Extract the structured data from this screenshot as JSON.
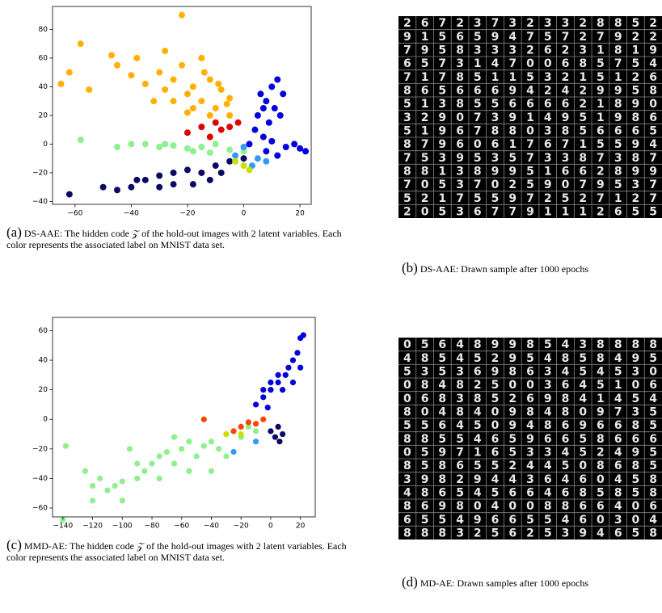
{
  "chart_data": [
    {
      "type": "scatter",
      "xlim": [
        -68,
        24
      ],
      "ylim": [
        -42,
        96
      ],
      "xticks": [
        {
          "value": -60,
          "label": "−60"
        },
        {
          "value": -40,
          "label": "−40"
        },
        {
          "value": -20,
          "label": "−20"
        },
        0,
        20
      ],
      "yticks": [
        {
          "value": -40,
          "label": "−40"
        },
        {
          "value": -20,
          "label": "−20"
        },
        0,
        20,
        40,
        60,
        80
      ],
      "series": [
        {
          "color": "#ffb000",
          "x": [
            -62,
            -65,
            -58,
            -55,
            -47,
            -45,
            -40,
            -38,
            -35,
            -30,
            -28,
            -25,
            -22,
            -20,
            -18,
            -15,
            -12,
            -10,
            -8,
            -5,
            -15,
            -22,
            -12,
            -25,
            -32,
            -18,
            -5,
            -28,
            -14,
            -9,
            -20,
            -6
          ],
          "values": [
            50,
            42,
            70,
            38,
            62,
            55,
            48,
            60,
            42,
            50,
            65,
            45,
            55,
            35,
            40,
            30,
            45,
            25,
            38,
            20,
            60,
            90,
            20,
            30,
            30,
            25,
            32,
            38,
            50,
            42,
            22,
            28
          ]
        },
        {
          "color": "#0000dd",
          "x": [
            5,
            8,
            10,
            12,
            6,
            9,
            11,
            14,
            7,
            4,
            10,
            15,
            20,
            18,
            8,
            12,
            2,
            22,
            13,
            7
          ],
          "values": [
            20,
            30,
            40,
            45,
            35,
            15,
            25,
            35,
            5,
            10,
            2,
            -2,
            -3,
            0,
            -5,
            -8,
            0,
            -5,
            20,
            25
          ]
        },
        {
          "color": "#0a0a64",
          "x": [
            -62,
            -50,
            -45,
            -40,
            -35,
            -30,
            -25,
            -20,
            -15,
            -10,
            -5,
            0,
            -18,
            -25,
            -8,
            -12,
            -30,
            -38
          ],
          "values": [
            -35,
            -30,
            -32,
            -30,
            -25,
            -22,
            -20,
            -18,
            -20,
            -15,
            -12,
            -10,
            -28,
            -28,
            -20,
            -25,
            -30,
            -25
          ]
        },
        {
          "color": "#8ef08e",
          "x": [
            -45,
            -40,
            -35,
            -30,
            -25,
            -20,
            -15,
            -10,
            -5,
            0,
            -28,
            -18,
            -12,
            -58
          ],
          "values": [
            -2,
            0,
            0,
            -2,
            -1,
            -3,
            -2,
            0,
            -4,
            -5,
            0,
            -5,
            -6,
            3
          ]
        },
        {
          "color": "#e00000",
          "x": [
            -20,
            -15,
            -10,
            -5,
            -2,
            -12,
            -8
          ],
          "values": [
            8,
            12,
            15,
            12,
            15,
            5,
            10
          ]
        },
        {
          "color": "#3399ff",
          "x": [
            0,
            5,
            3,
            8,
            -3
          ],
          "values": [
            -2,
            -10,
            -15,
            -12,
            -8
          ]
        },
        {
          "color": "#c8e000",
          "x": [
            0,
            -3,
            2
          ],
          "values": [
            -15,
            -12,
            -18
          ]
        }
      ]
    },
    {
      "type": "scatter",
      "xlim": [
        -147,
        30
      ],
      "ylim": [
        -66,
        69
      ],
      "xticks": [
        {
          "value": -140,
          "label": "−140"
        },
        {
          "value": -120,
          "label": "−120"
        },
        {
          "value": -100,
          "label": "−100"
        },
        {
          "value": -80,
          "label": "−80"
        },
        {
          "value": -60,
          "label": "−60"
        },
        {
          "value": -40,
          "label": "−40"
        },
        {
          "value": -20,
          "label": "−20"
        },
        0,
        20
      ],
      "yticks": [
        {
          "value": -60,
          "label": "−60"
        },
        {
          "value": -40,
          "label": "−40"
        },
        {
          "value": -20,
          "label": "−20"
        },
        0,
        20,
        40,
        60
      ],
      "series": [
        {
          "color": "#0000dd",
          "x": [
            -10,
            -5,
            0,
            5,
            10,
            15,
            18,
            20,
            22,
            12,
            5,
            0,
            -5,
            8,
            15,
            20,
            -2
          ],
          "values": [
            10,
            15,
            20,
            25,
            30,
            40,
            45,
            55,
            57,
            35,
            30,
            25,
            20,
            20,
            25,
            35,
            8
          ]
        },
        {
          "color": "#8ef08e",
          "x": [
            -140,
            -138,
            -125,
            -120,
            -115,
            -110,
            -105,
            -100,
            -95,
            -90,
            -85,
            -80,
            -75,
            -70,
            -65,
            -60,
            -55,
            -50,
            -45,
            -40,
            -35,
            -30,
            -25,
            -20,
            -15,
            -10,
            -55,
            -40,
            -75,
            -100,
            -120,
            -90,
            -65,
            -30
          ],
          "values": [
            -68,
            -18,
            -35,
            -45,
            -40,
            -48,
            -45,
            -42,
            -20,
            -40,
            -35,
            -30,
            -25,
            -22,
            -30,
            -20,
            -15,
            -25,
            -18,
            -15,
            -20,
            -10,
            -8,
            -12,
            -5,
            -8,
            -35,
            -35,
            -40,
            -55,
            -55,
            -30,
            -12,
            -25
          ]
        },
        {
          "color": "#0a0a64",
          "x": [
            5,
            8,
            3,
            0,
            6
          ],
          "values": [
            -5,
            -10,
            -12,
            -8,
            -15
          ]
        },
        {
          "color": "#ff4400",
          "x": [
            -20,
            -15,
            -10,
            -5,
            -45,
            -25
          ],
          "values": [
            -5,
            -2,
            -3,
            0,
            0,
            -8
          ]
        },
        {
          "color": "#c8e000",
          "x": [
            -30,
            -20
          ],
          "values": [
            -10,
            -10
          ]
        },
        {
          "color": "#3399ff",
          "x": [
            -25,
            -10
          ],
          "values": [
            -22,
            -15
          ]
        }
      ]
    }
  ],
  "samples": [
    {
      "rows": [
        "267237323328852",
        "915659475727922",
        "795833326231819",
        "657314700685754",
        "717851153215126",
        "865666942429958",
        "513855666621890",
        "329073914951986",
        "519678803856665",
        "879606176715594",
        "753953573387387",
        "881389951662899",
        "705370259079537",
        "521755972527127",
        "205367791112655"
      ]
    },
    {
      "rows": [
        "056489985438888",
        "485452954858495",
        "535369863454530",
        "084825003645106",
        "068385269841454",
        "804840984809735",
        "556450948696685",
        "885546596658666",
        "059716533452495",
        "858655244508685",
        "398294436460458",
        "486545664685858",
        "869804008866406",
        "655496655460304",
        "888325625394658"
      ]
    }
  ],
  "panels": [
    {
      "label": "(a)",
      "caption": "DS-AAE: The hidden code 𝒵 of the hold-out images with 2 latent variables. Each color represents the associated label on MNIST data set."
    },
    {
      "label": "(b)",
      "caption": "DS-AAE: Drawn sample after 1000 epochs"
    },
    {
      "label": "(c)",
      "caption": "MMD-AE: The hidden code 𝒵 of the hold-out images with 2 latent variables. Each color represents the associated label on MNIST data set."
    },
    {
      "label": "(d)",
      "caption": "MD-AE: Drawn samples after 1000 epochs"
    }
  ]
}
